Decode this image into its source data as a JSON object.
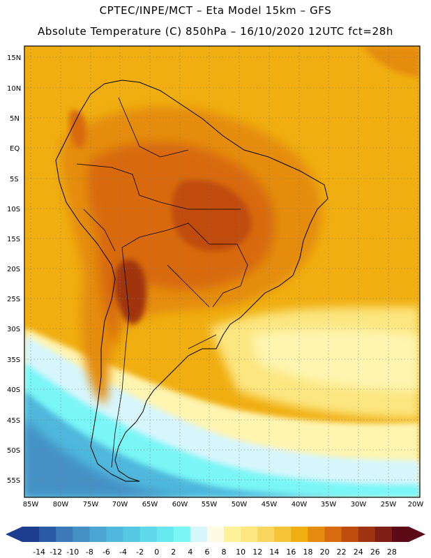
{
  "header": {
    "line1": "CPTEC/INPE/MCT –  Eta Model 15km – GFS",
    "line2": "Absolute Temperature (C) 850hPa – 16/10/2020 12UTC fct=28h"
  },
  "map": {
    "lat_labels": [
      "15N",
      "10N",
      "5N",
      "EQ",
      "5S",
      "10S",
      "15S",
      "20S",
      "25S",
      "30S",
      "35S",
      "40S",
      "45S",
      "50S",
      "55S"
    ],
    "lon_labels": [
      "85W",
      "80W",
      "75W",
      "70W",
      "65W",
      "60W",
      "55W",
      "50W",
      "45W",
      "40W",
      "35W",
      "30W",
      "25W",
      "20W"
    ]
  },
  "colorbar": {
    "ticks": [
      "-14",
      "-12",
      "-10",
      "-8",
      "-6",
      "-4",
      "-2",
      "0",
      "2",
      "4",
      "6",
      "8",
      "10",
      "12",
      "14",
      "16",
      "18",
      "20",
      "22",
      "24",
      "26",
      "28"
    ],
    "colors": [
      "#1e3d8f",
      "#2a5aa6",
      "#3b79b9",
      "#4591c6",
      "#4ba6d2",
      "#50b8dc",
      "#56c8e3",
      "#5fd8ea",
      "#67e7f0",
      "#7af6f6",
      "#d6f6fc",
      "#fefae4",
      "#fcf29a",
      "#fce680",
      "#fad65e",
      "#f5c436",
      "#f0ae10",
      "#e58c10",
      "#d86a10",
      "#c04c10",
      "#a03410",
      "#7e1e14",
      "#5c0a16"
    ]
  }
}
